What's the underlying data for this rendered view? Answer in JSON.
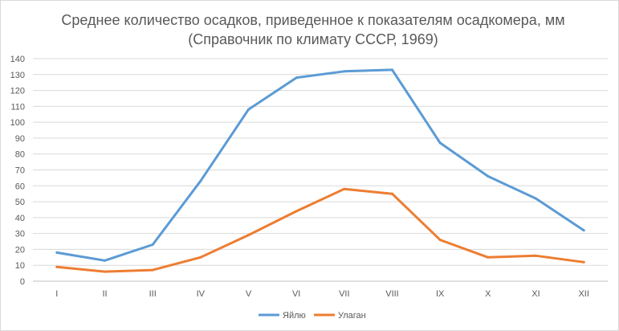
{
  "chart_data": {
    "type": "line",
    "title": "Среднее количество осадков, приведенное к показателям осадкомера, мм",
    "subtitle": "(Справочник по климату СССР, 1969)",
    "categories": [
      "I",
      "II",
      "III",
      "IV",
      "V",
      "VI",
      "VII",
      "VIII",
      "IX",
      "X",
      "XI",
      "XII"
    ],
    "series": [
      {
        "name": "Яйлю",
        "color": "#5b9bd5",
        "values": [
          18,
          13,
          23,
          63,
          108,
          128,
          132,
          133,
          87,
          66,
          52,
          32
        ]
      },
      {
        "name": "Улаган",
        "color": "#ed7d31",
        "values": [
          9,
          6,
          7,
          15,
          29,
          44,
          58,
          55,
          26,
          15,
          16,
          12
        ]
      }
    ],
    "ylim": [
      0,
      140
    ],
    "yticks": [
      0,
      10,
      20,
      30,
      40,
      50,
      60,
      70,
      80,
      90,
      100,
      110,
      120,
      130,
      140
    ],
    "xlabel": "",
    "ylabel": "",
    "grid": true,
    "legend_position": "bottom"
  }
}
